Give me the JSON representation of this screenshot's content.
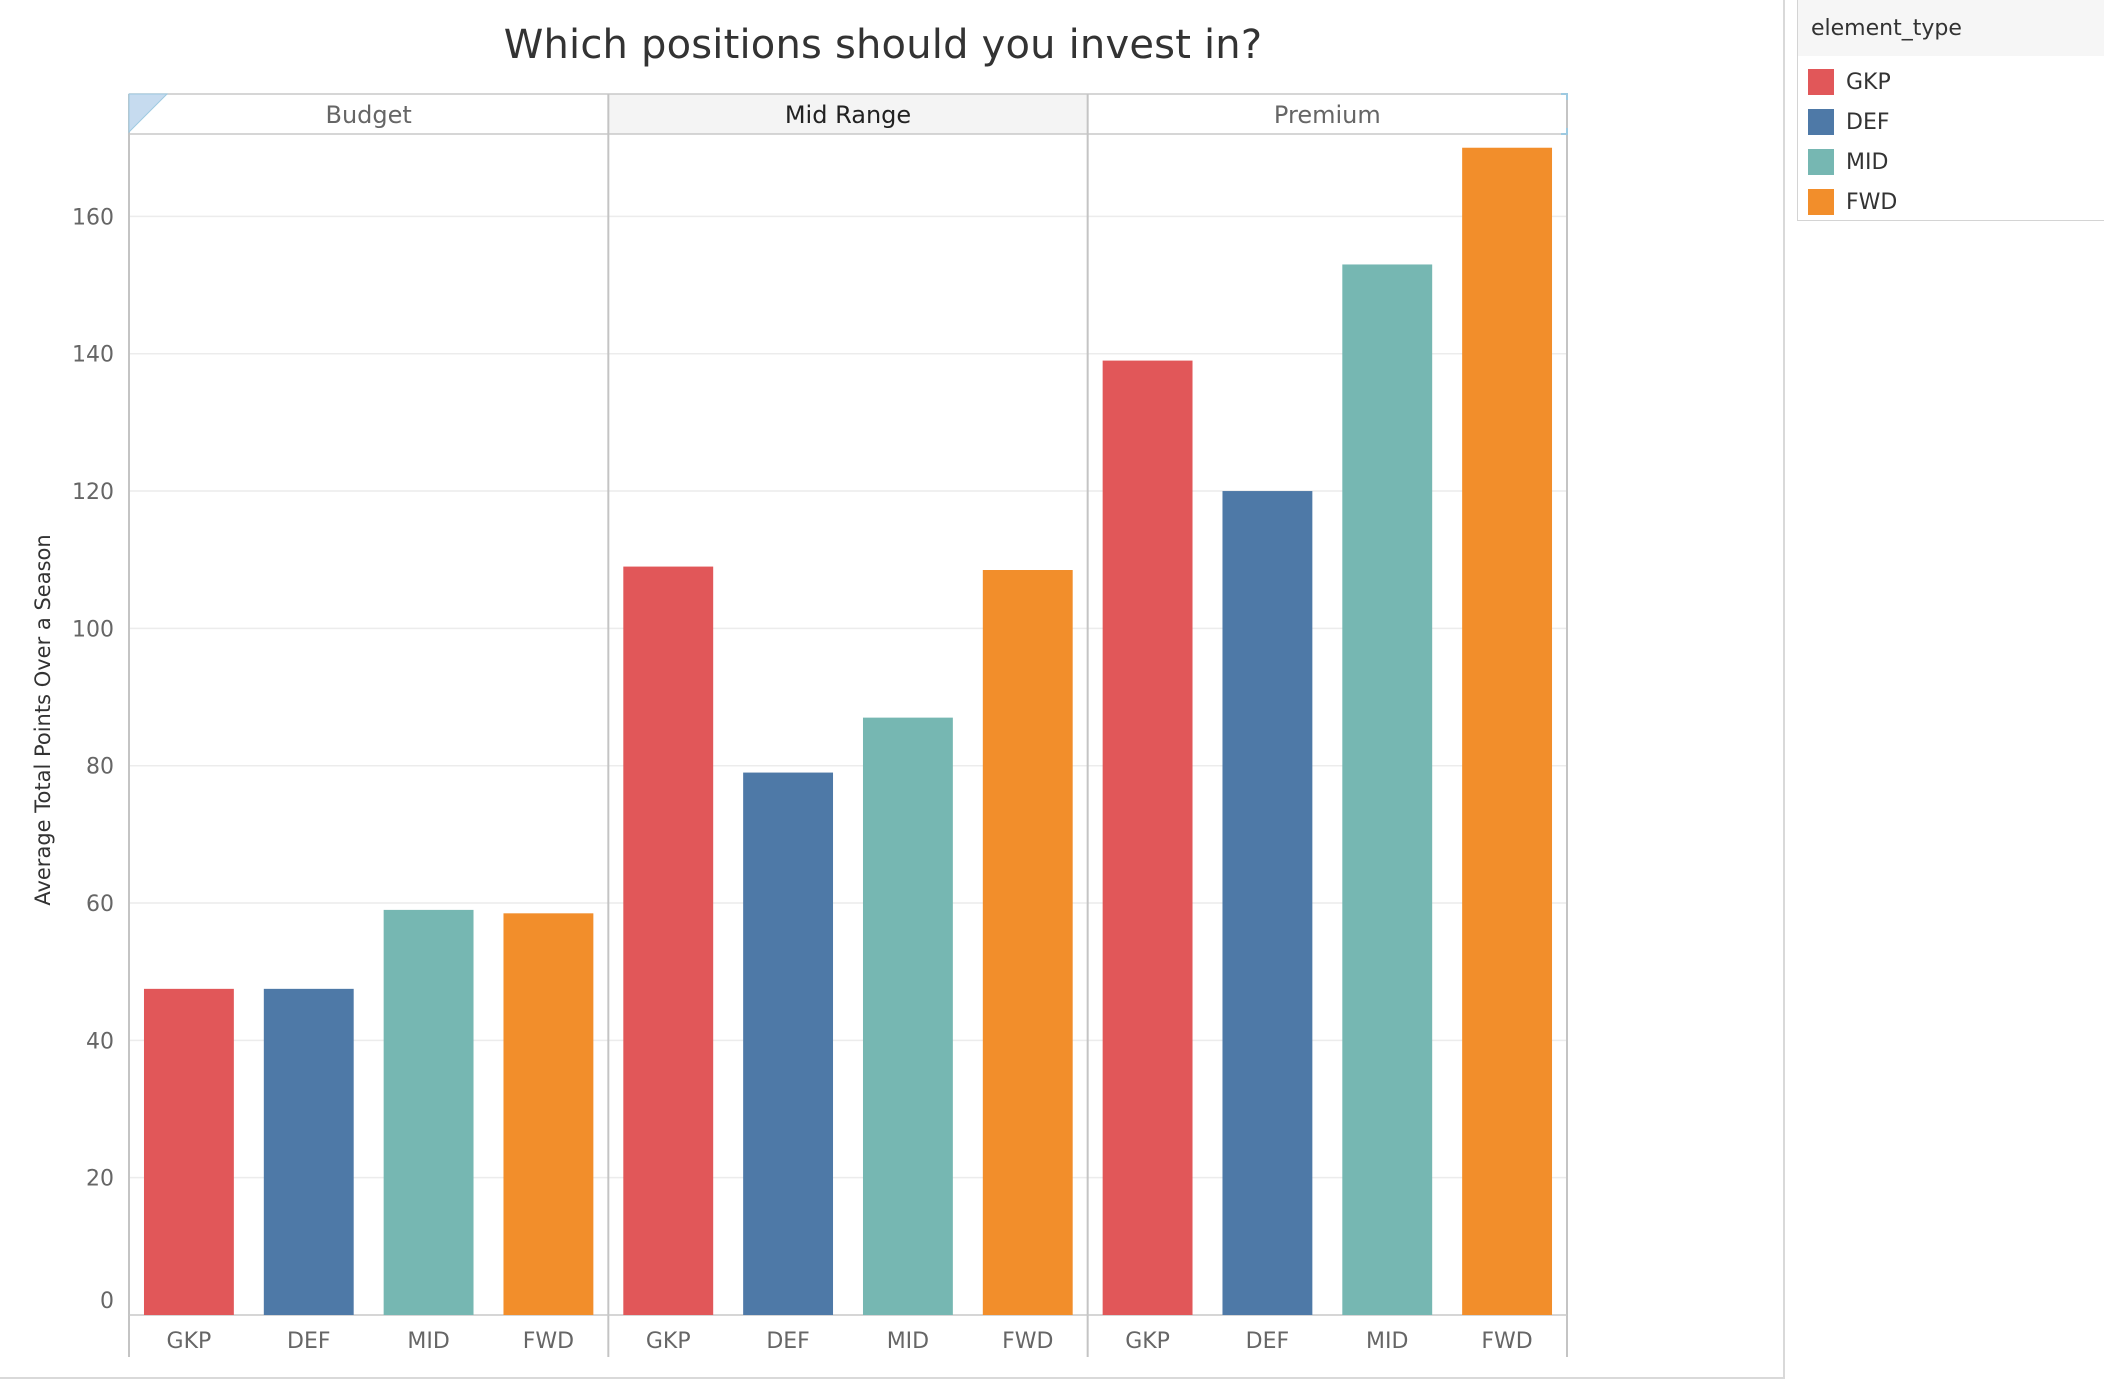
{
  "chart_data": {
    "type": "bar",
    "title": "Which positions should you invest in?",
    "ylabel": "Average Total Points Over a Season",
    "xlabel": "",
    "ylim": [
      0,
      172
    ],
    "yticks": [
      0,
      20,
      40,
      60,
      80,
      100,
      120,
      140,
      160
    ],
    "grid": true,
    "legend_position": "top-right",
    "color_field": "element_type",
    "panels": [
      "Budget",
      "Mid Range",
      "Premium"
    ],
    "categories": [
      "GKP",
      "DEF",
      "MID",
      "FWD"
    ],
    "colors": {
      "GKP": "#e15759",
      "DEF": "#4e79a7",
      "MID": "#76b7b2",
      "FWD": "#f28e2b"
    },
    "series": [
      {
        "panel": "Budget",
        "values": [
          47.5,
          47.5,
          59,
          58.5
        ]
      },
      {
        "panel": "Mid Range",
        "values": [
          109,
          79,
          87,
          108.5
        ]
      },
      {
        "panel": "Premium",
        "values": [
          139,
          120,
          153,
          170
        ]
      }
    ]
  },
  "legend": {
    "title": "element_type",
    "items": [
      {
        "label": "GKP",
        "color": "#e15759"
      },
      {
        "label": "DEF",
        "color": "#4e79a7"
      },
      {
        "label": "MID",
        "color": "#76b7b2"
      },
      {
        "label": "FWD",
        "color": "#f28e2b"
      }
    ]
  }
}
